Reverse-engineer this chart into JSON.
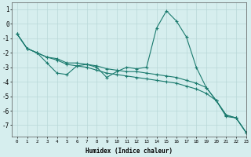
{
  "xlabel": "Humidex (Indice chaleur)",
  "ylabel": "",
  "xlim": [
    -0.5,
    23
  ],
  "ylim": [
    -7.8,
    1.5
  ],
  "yticks": [
    1,
    0,
    -1,
    -2,
    -3,
    -4,
    -5,
    -6,
    -7
  ],
  "xticks": [
    0,
    1,
    2,
    3,
    4,
    5,
    6,
    7,
    8,
    9,
    10,
    11,
    12,
    13,
    14,
    15,
    16,
    17,
    18,
    19,
    20,
    21,
    22,
    23
  ],
  "background_color": "#d6eeee",
  "grid_color": "#b8d8d8",
  "line_color": "#1a7a6e",
  "lines": [
    {
      "x": [
        0,
        1,
        2,
        3,
        4,
        5,
        6,
        7,
        8,
        9,
        10,
        11,
        12,
        13,
        14,
        15,
        16,
        17,
        18,
        19,
        20,
        21,
        22,
        23
      ],
      "y": [
        -0.7,
        -1.7,
        -2.0,
        -2.7,
        -3.4,
        -3.5,
        -2.9,
        -2.8,
        -3.0,
        -3.7,
        -3.3,
        -3.0,
        -3.1,
        -3.0,
        -0.3,
        0.9,
        0.2,
        -0.9,
        -3.0,
        -4.4,
        -5.3,
        -6.4,
        -6.5,
        -7.5
      ],
      "marker": "+"
    },
    {
      "x": [
        0,
        1,
        2,
        3,
        4,
        5,
        6,
        7,
        8,
        9,
        10,
        11,
        12,
        13,
        14,
        15,
        16,
        17,
        18,
        19,
        20,
        21,
        22,
        23
      ],
      "y": [
        -0.7,
        -1.7,
        -2.0,
        -2.3,
        -2.4,
        -2.7,
        -2.7,
        -2.8,
        -2.9,
        -3.1,
        -3.2,
        -3.3,
        -3.3,
        -3.4,
        -3.5,
        -3.6,
        -3.7,
        -3.9,
        -4.1,
        -4.4,
        -5.3,
        -6.3,
        -6.5,
        -7.5
      ],
      "marker": "+"
    },
    {
      "x": [
        0,
        1,
        2,
        3,
        4,
        5,
        6,
        7,
        8,
        9,
        10,
        11,
        12,
        13,
        14,
        15,
        16,
        17,
        18,
        19,
        20,
        21,
        22,
        23
      ],
      "y": [
        -0.7,
        -1.7,
        -2.0,
        -2.3,
        -2.5,
        -2.8,
        -2.9,
        -3.0,
        -3.2,
        -3.4,
        -3.5,
        -3.6,
        -3.7,
        -3.8,
        -3.9,
        -4.0,
        -4.1,
        -4.3,
        -4.5,
        -4.8,
        -5.3,
        -6.3,
        -6.5,
        -7.5
      ],
      "marker": "+"
    }
  ]
}
